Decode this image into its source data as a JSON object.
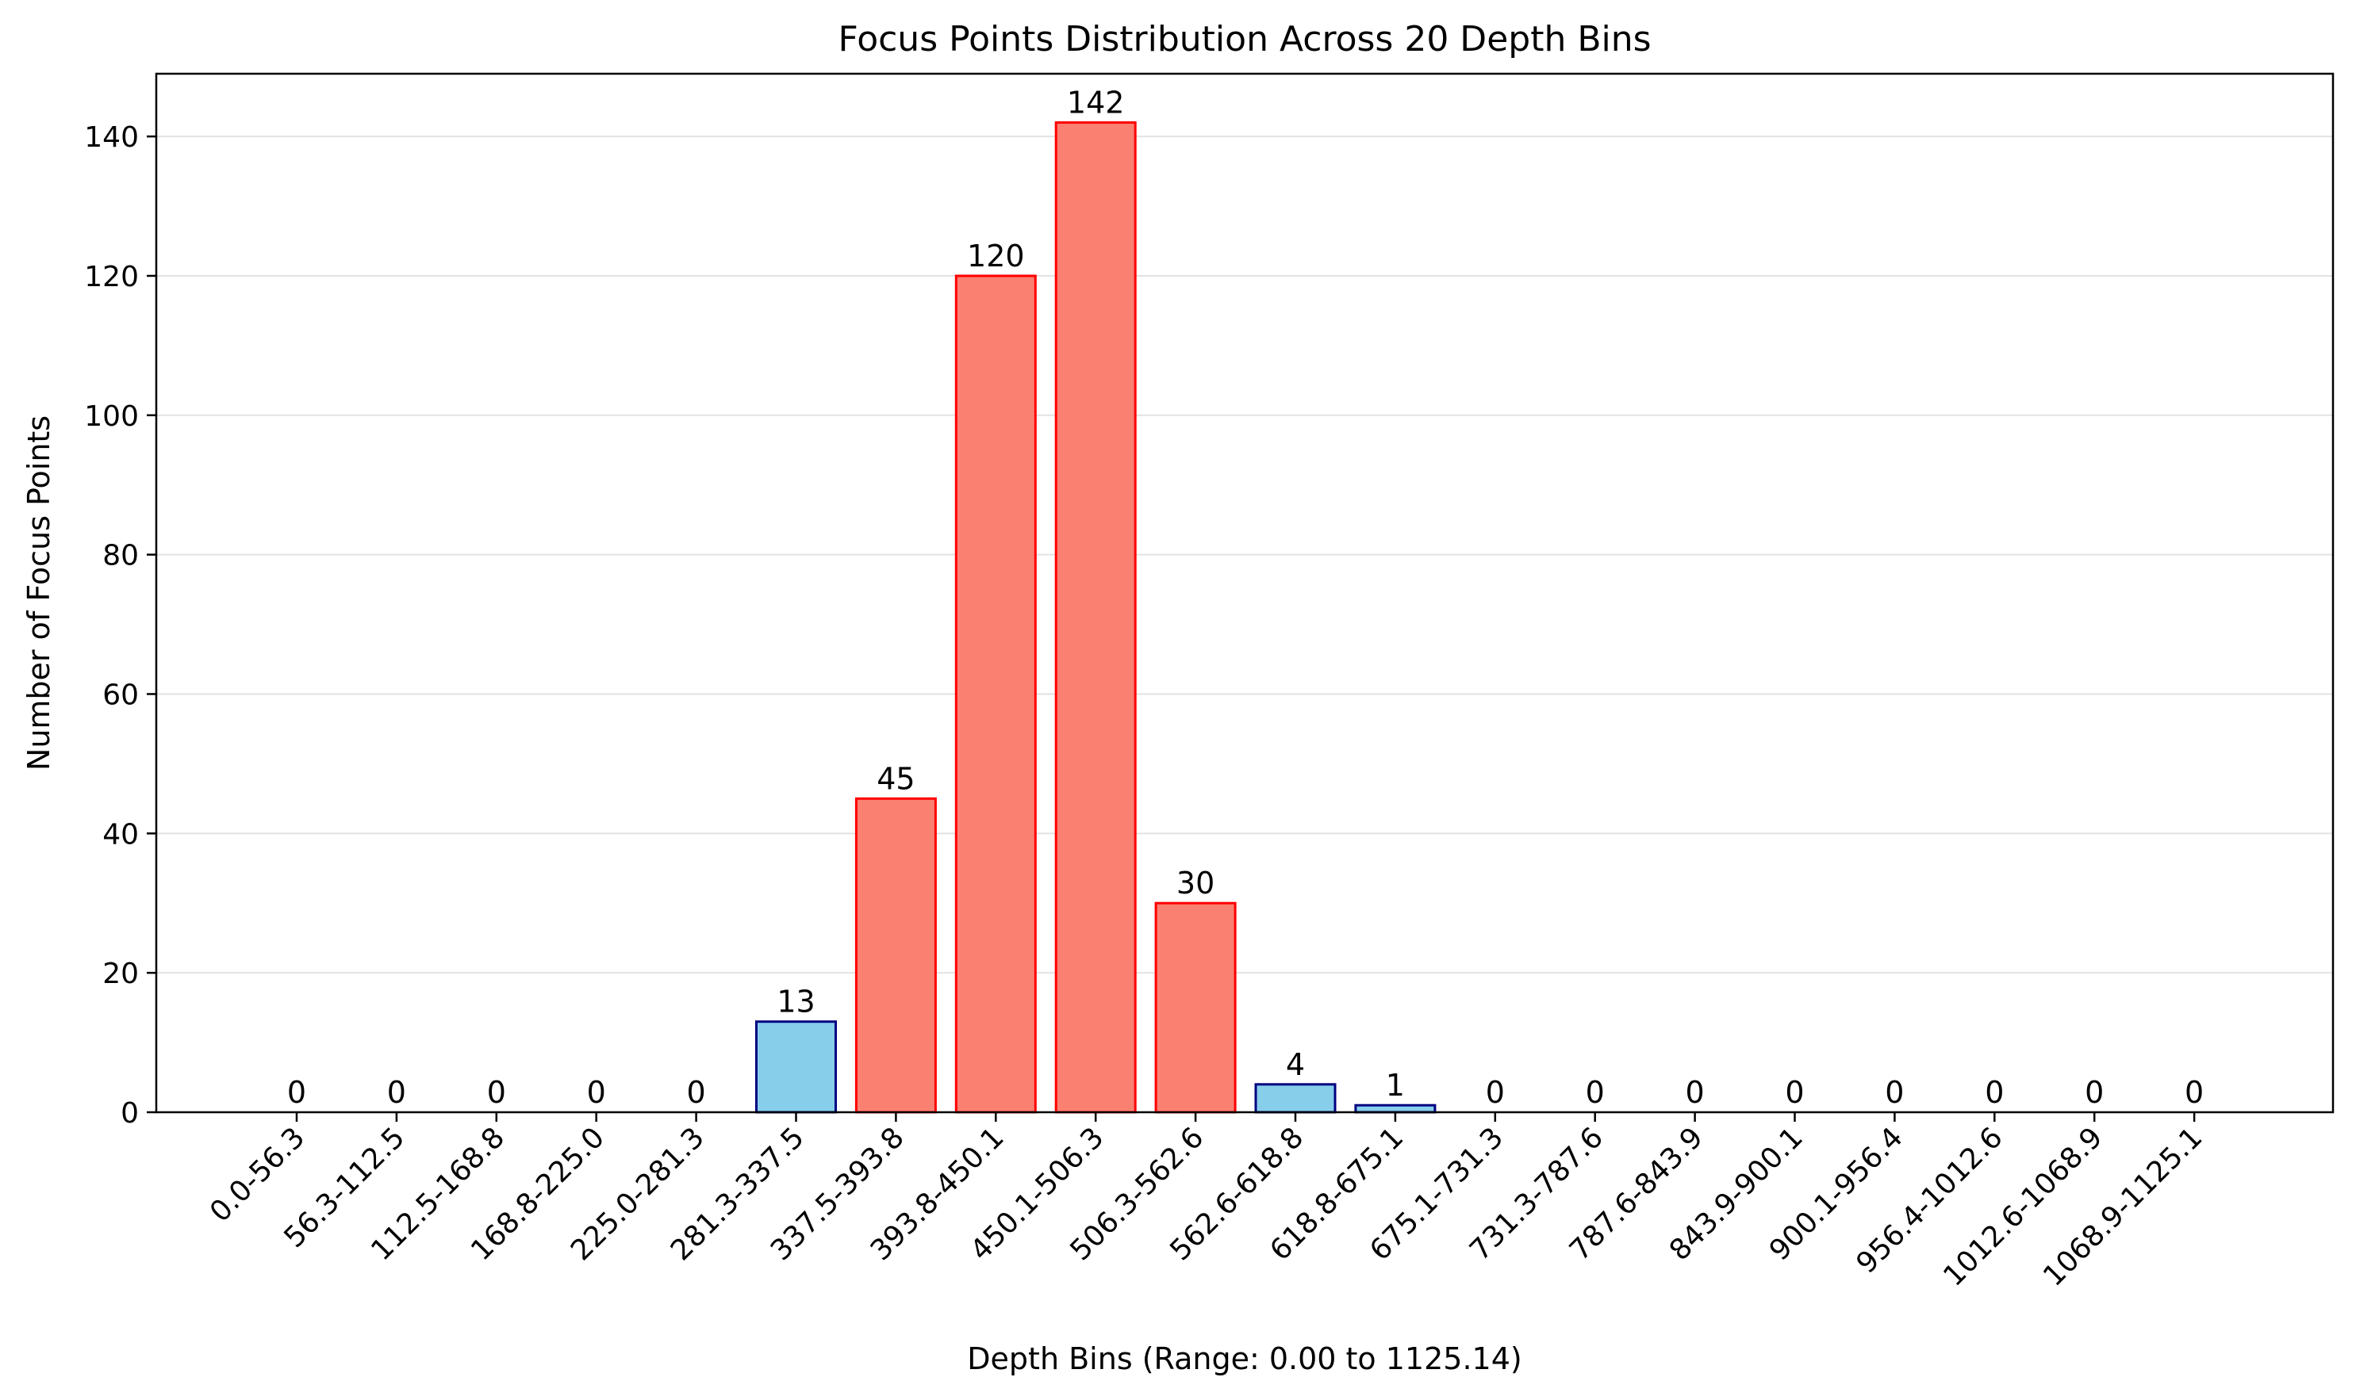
{
  "chart_data": {
    "type": "bar",
    "title": "Focus Points Distribution Across 20 Depth Bins",
    "xlabel": "Depth Bins (Range: 0.00 to 1125.14)",
    "ylabel": "Number of Focus Points",
    "ylim": [
      0,
      149
    ],
    "yticks": [
      0,
      20,
      40,
      60,
      80,
      100,
      120,
      140
    ],
    "grid": "y-axis only, light gray",
    "legend": "none",
    "categories": [
      "0.0-56.3",
      "56.3-112.5",
      "112.5-168.8",
      "168.8-225.0",
      "225.0-281.3",
      "281.3-337.5",
      "337.5-393.8",
      "393.8-450.1",
      "450.1-506.3",
      "506.3-562.6",
      "562.6-618.8",
      "618.8-675.1",
      "675.1-731.3",
      "731.3-787.6",
      "787.6-843.9",
      "843.9-900.1",
      "900.1-956.4",
      "956.4-1012.6",
      "1012.6-1068.9",
      "1068.9-1125.1"
    ],
    "values": [
      0,
      0,
      0,
      0,
      0,
      13,
      45,
      120,
      142,
      30,
      4,
      1,
      0,
      0,
      0,
      0,
      0,
      0,
      0,
      0
    ],
    "bar_styles": {
      "highlight": {
        "fill": "#fa8072",
        "edge": "#ff0000"
      },
      "normal": {
        "fill": "#87ceeb",
        "edge": "#000080"
      }
    },
    "highlighted": [
      6,
      7,
      8,
      9
    ]
  }
}
